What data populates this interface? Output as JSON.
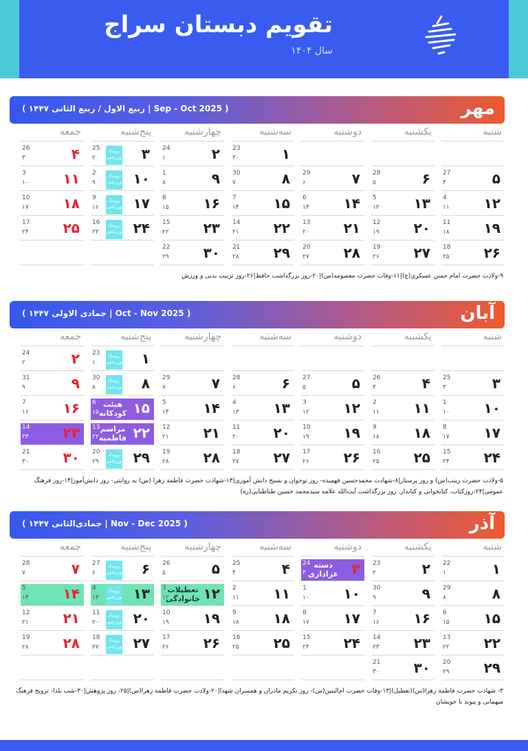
{
  "header": {
    "title": "تقویم دبستان سراج",
    "year": "سال ۱۴۰۴"
  },
  "weekdays": [
    "شنبه",
    "یکشنبه",
    "دوشنبه",
    "سه‌شنبه",
    "چهارشنبه",
    "پنج‌شنبه",
    "جمعه"
  ],
  "event_tag": "رویداد ورزشی",
  "months": [
    {
      "name": "مهر",
      "info": "( ربیع الاول / ربیع الثانی ۱۴۴۷  |  Sep - Oct 2025 )",
      "rows": [
        [
          null,
          null,
          null,
          {
            "d": "۱",
            "g": "23",
            "h": "۳۰"
          },
          {
            "d": "۲",
            "g": "24",
            "h": "۱"
          },
          {
            "d": "۳",
            "g": "25",
            "h": "۲",
            "tag": true
          },
          {
            "d": "۴",
            "g": "26",
            "h": "۳",
            "red": true
          }
        ],
        [
          {
            "d": "۵",
            "g": "27",
            "h": "۴"
          },
          {
            "d": "۶",
            "g": "28",
            "h": "۵"
          },
          {
            "d": "۷",
            "g": "29",
            "h": "۶"
          },
          {
            "d": "۸",
            "g": "30",
            "h": "۷"
          },
          {
            "d": "۹",
            "g": "1",
            "h": "۸"
          },
          {
            "d": "۱۰",
            "g": "2",
            "h": "۹",
            "tag": true
          },
          {
            "d": "۱۱",
            "g": "3",
            "h": "۱۰",
            "red": true
          }
        ],
        [
          {
            "d": "۱۲",
            "g": "4",
            "h": "۱۱"
          },
          {
            "d": "۱۳",
            "g": "5",
            "h": "۱۲"
          },
          {
            "d": "۱۴",
            "g": "6",
            "h": "۱۳"
          },
          {
            "d": "۱۵",
            "g": "7",
            "h": "۱۴"
          },
          {
            "d": "۱۶",
            "g": "8",
            "h": "۱۵"
          },
          {
            "d": "۱۷",
            "g": "9",
            "h": "۱۶",
            "tag": true
          },
          {
            "d": "۱۸",
            "g": "10",
            "h": "۱۷",
            "red": true
          }
        ],
        [
          {
            "d": "۱۹",
            "g": "11",
            "h": "۱۸"
          },
          {
            "d": "۲۰",
            "g": "12",
            "h": "۱۹"
          },
          {
            "d": "۲۱",
            "g": "13",
            "h": "۲۰"
          },
          {
            "d": "۲۲",
            "g": "14",
            "h": "۲۱"
          },
          {
            "d": "۲۳",
            "g": "15",
            "h": "۲۲"
          },
          {
            "d": "۲۴",
            "g": "16",
            "h": "۲۳",
            "tag": true
          },
          {
            "d": "۲۵",
            "g": "17",
            "h": "۲۴",
            "red": true
          }
        ],
        [
          {
            "d": "۲۶",
            "g": "18",
            "h": "۲۵"
          },
          {
            "d": "۲۷",
            "g": "19",
            "h": "۲۶"
          },
          {
            "d": "۲۸",
            "g": "20",
            "h": "۲۷"
          },
          {
            "d": "۲۹",
            "g": "21",
            "h": "۲۸"
          },
          {
            "d": "۳۰",
            "g": "22",
            "h": "۲۹"
          },
          null,
          null
        ]
      ],
      "notes": [
        "۹-ولادت حضرت امام حسن عسکری(ع)|۱۱-وفات حضرت معصومه(س)|۲۰-روز بزرگداشت حافظ|۲۶-روز تربیت بدنی و ورزش"
      ]
    },
    {
      "name": "آبان",
      "info": "( جمادی الاولی ۱۴۴۷  |  Oct - Nov 2025 )",
      "rows": [
        [
          null,
          null,
          null,
          null,
          null,
          {
            "d": "۱",
            "g": "23",
            "h": "۱",
            "tag": true
          },
          {
            "d": "۲",
            "g": "24",
            "h": "۲",
            "red": true
          }
        ],
        [
          {
            "d": "۳",
            "g": "25",
            "h": "۳"
          },
          {
            "d": "۴",
            "g": "26",
            "h": "۴"
          },
          {
            "d": "۵",
            "g": "27",
            "h": "۵"
          },
          {
            "d": "۶",
            "g": "28",
            "h": "۶"
          },
          {
            "d": "۷",
            "g": "29",
            "h": "۷"
          },
          {
            "d": "۸",
            "g": "30",
            "h": "۸",
            "tag": true
          },
          {
            "d": "۹",
            "g": "31",
            "h": "۹",
            "red": true
          }
        ],
        [
          {
            "d": "۱۰",
            "g": "1",
            "h": "۱۰"
          },
          {
            "d": "۱۱",
            "g": "2",
            "h": "۱۱"
          },
          {
            "d": "۱۲",
            "g": "3",
            "h": "۱۲"
          },
          {
            "d": "۱۳",
            "g": "4",
            "h": "۱۳"
          },
          {
            "d": "۱۴",
            "g": "5",
            "h": "۱۴"
          },
          {
            "d": "۱۵",
            "g": "6",
            "h": "۱۵",
            "ev": "هیئت کودکانه",
            "evc": "purple"
          },
          {
            "d": "۱۶",
            "g": "7",
            "h": "۱۶",
            "red": true
          }
        ],
        [
          {
            "d": "۱۷",
            "g": "8",
            "h": "۱۷"
          },
          {
            "d": "۱۸",
            "g": "9",
            "h": "۱۸"
          },
          {
            "d": "۱۹",
            "g": "10",
            "h": "۱۹"
          },
          {
            "d": "۲۰",
            "g": "11",
            "h": "۲۰"
          },
          {
            "d": "۲۱",
            "g": "12",
            "h": "۲۱"
          },
          {
            "d": "۲۲",
            "g": "13",
            "h": "۲۲",
            "ev": "مراسم فاطمیه",
            "evc": "purple"
          },
          {
            "d": "۲۳",
            "g": "14",
            "h": "۲۳",
            "red": true,
            "evc": "purple"
          }
        ],
        [
          {
            "d": "۲۴",
            "g": "15",
            "h": "۲۴"
          },
          {
            "d": "۲۵",
            "g": "16",
            "h": "۲۵"
          },
          {
            "d": "۲۶",
            "g": "17",
            "h": "۲۶"
          },
          {
            "d": "۲۷",
            "g": "18",
            "h": "۲۷"
          },
          {
            "d": "۲۸",
            "g": "19",
            "h": "۲۸"
          },
          {
            "d": "۲۹",
            "g": "20",
            "h": "۲۹",
            "tag": true
          },
          {
            "d": "۳۰",
            "g": "21",
            "h": "۳۰",
            "red": true
          }
        ]
      ],
      "notes": [
        "۵-ولادت حضرت زینب(س) و روز پرستار|۸-شهادت محمدحسین فهمیده- روز نوجوان و بسیج دانش آموزی|۱۳-شهادت حضرت فاطمة زهرا (س) به روایتی- روز دانش‌آموز|۱۴-روز فرهنگ",
        "عمومی|۲۴-روزکتاب، کتابخوانی و کتابدار. روز بزرگداشت آیت‌الله علامه سیدمحمد حسین طباطبایی(ره)"
      ]
    },
    {
      "name": "آذر",
      "info": "( جمادی‌الثانی ۱۴۴۷  |  Nov - Dec 2025 )",
      "rows": [
        [
          {
            "d": "۱",
            "g": "22",
            "h": "۱"
          },
          {
            "d": "۲",
            "g": "23",
            "h": "۲"
          },
          {
            "d": "۳",
            "g": "24",
            "h": "۳",
            "red": true,
            "ev": "دسته عزاداری",
            "evc": "purple"
          },
          {
            "d": "۴",
            "g": "25",
            "h": "۴"
          },
          {
            "d": "۵",
            "g": "26",
            "h": "۵"
          },
          {
            "d": "۶",
            "g": "27",
            "h": "۶",
            "tag": true
          },
          {
            "d": "۷",
            "g": "28",
            "h": "۷",
            "red": true
          }
        ],
        [
          {
            "d": "۸",
            "g": "29",
            "h": "۸"
          },
          {
            "d": "۹",
            "g": "30",
            "h": "۹"
          },
          {
            "d": "۱۰",
            "g": "1",
            "h": "۱۰"
          },
          {
            "d": "۱۱",
            "g": "2",
            "h": "۱۱"
          },
          {
            "d": "۱۲",
            "g": "3",
            "h": "۱۲",
            "ev": "تعطیلات خانوادگی",
            "evc": "green"
          },
          {
            "d": "۱۳",
            "g": "4",
            "h": "۱۳",
            "tag": true,
            "evc": "green"
          },
          {
            "d": "۱۴",
            "g": "5",
            "h": "۱۴",
            "red": true,
            "evc": "green"
          }
        ],
        [
          {
            "d": "۱۵",
            "g": "6",
            "h": "۱۵"
          },
          {
            "d": "۱۶",
            "g": "7",
            "h": "۱۶"
          },
          {
            "d": "۱۷",
            "g": "8",
            "h": "۱۷"
          },
          {
            "d": "۱۸",
            "g": "9",
            "h": "۱۸"
          },
          {
            "d": "۱۹",
            "g": "10",
            "h": "۱۹"
          },
          {
            "d": "۲۰",
            "g": "11",
            "h": "۲۰",
            "tag": true
          },
          {
            "d": "۲۱",
            "g": "12",
            "h": "۲۱",
            "red": true
          }
        ],
        [
          {
            "d": "۲۲",
            "g": "13",
            "h": "۲۲"
          },
          {
            "d": "۲۳",
            "g": "14",
            "h": "۲۳"
          },
          {
            "d": "۲۴",
            "g": "15",
            "h": "۲۴"
          },
          {
            "d": "۲۵",
            "g": "16",
            "h": "۲۵"
          },
          {
            "d": "۲۶",
            "g": "17",
            "h": "۲۶"
          },
          {
            "d": "۲۷",
            "g": "18",
            "h": "۲۷",
            "tag": true
          },
          {
            "d": "۲۸",
            "g": "19",
            "h": "۲۸",
            "red": true
          }
        ],
        [
          {
            "d": "۲۹",
            "g": "20",
            "h": "۲۹"
          },
          {
            "d": "۳۰",
            "g": "21",
            "h": "۳۰"
          },
          null,
          null,
          null,
          null,
          null
        ]
      ],
      "notes": [
        "۳- شهادت حضرت فاطمة زهرا(س)(تعطیل)|۱۳-وفات حضرت ام‌البنین(س)- روز تکریم مادران و همسران شهدا|۲۰-ولادت حضرت فاطمة زهرا(س)|۲۵- روز پژوهش|۳۰-شب یلدا- ترویج فرهنگ",
        "میهمانی و پیوند با خویشان"
      ]
    }
  ]
}
